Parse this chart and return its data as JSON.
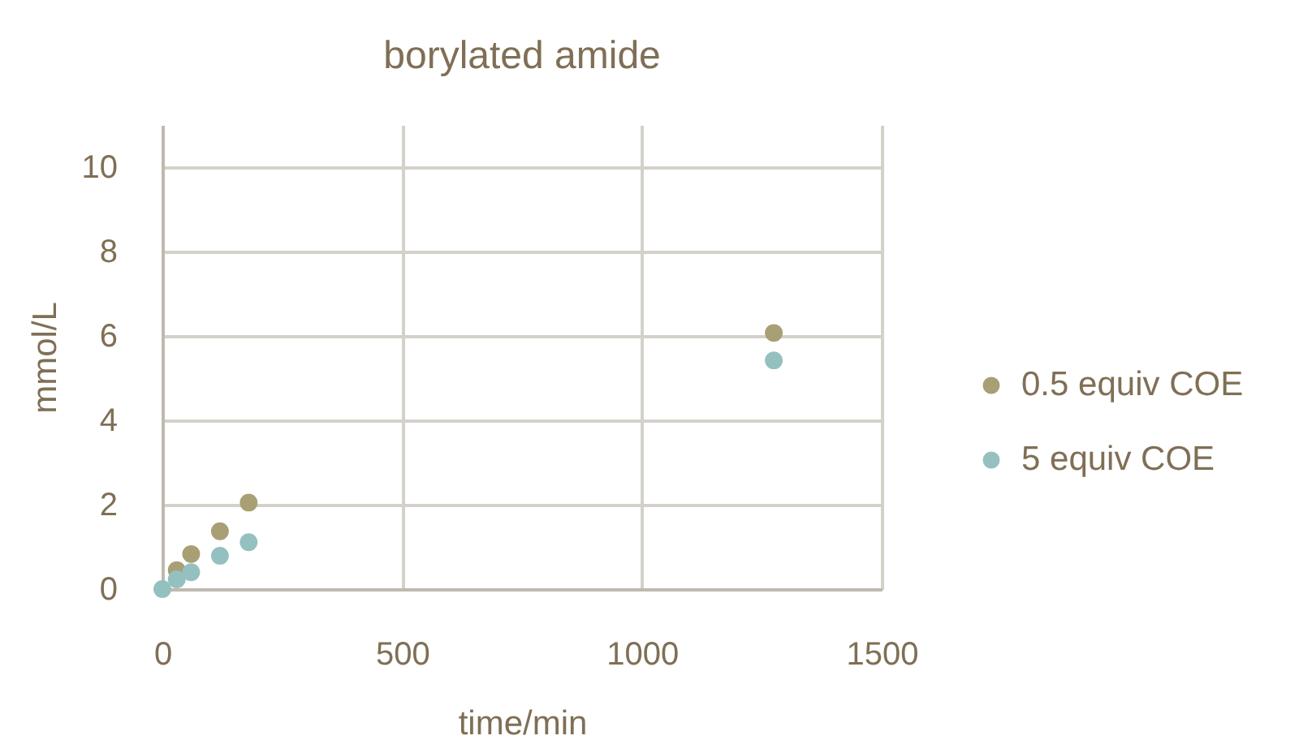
{
  "chart_data": {
    "type": "scatter",
    "title": "borylated amide",
    "xlabel": "time/min",
    "ylabel": "mmol/L",
    "xlim": [
      0,
      1500
    ],
    "xticks": [
      0,
      500,
      1000,
      1500
    ],
    "ylim": [
      0,
      11
    ],
    "yticks": [
      0,
      2,
      4,
      6,
      8,
      10
    ],
    "grid": true,
    "legend": "right",
    "marker": "circle",
    "series": [
      {
        "name": "0.5 equiv COE",
        "color": "#a89f74",
        "x": [
          30,
          60,
          120,
          180,
          1275
        ],
        "values": [
          0.45,
          0.83,
          1.37,
          2.05,
          6.07
        ]
      },
      {
        "name": "5 equiv COE",
        "color": "#94c1c0",
        "x": [
          0,
          30,
          60,
          120,
          180,
          1275
        ],
        "values": [
          0,
          0.23,
          0.4,
          0.79,
          1.11,
          5.42
        ]
      }
    ]
  }
}
